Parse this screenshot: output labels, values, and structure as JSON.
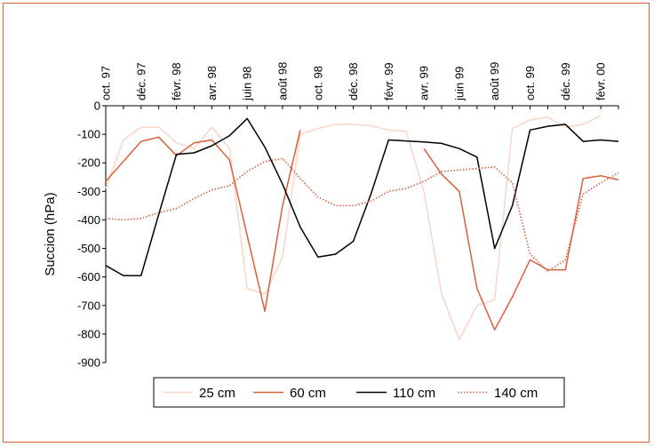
{
  "chart_data": {
    "type": "line",
    "ylabel": "Succion (hPa)",
    "ylim": [
      -900,
      0
    ],
    "ytick_labels": [
      "0",
      "-100",
      "-200",
      "-300",
      "-400",
      "-500",
      "-600",
      "-700",
      "-800",
      "-900"
    ],
    "x_tick_labels": [
      "oct. 97",
      "déc. 97",
      "févr. 98",
      "avr. 98",
      "juin 98",
      "août 98",
      "oct. 98",
      "déc. 98",
      "févr. 99",
      "avr. 99",
      "juin 99",
      "août 99",
      "oct. 99",
      "déc. 99",
      "févr. 00"
    ],
    "x_range_months": [
      0,
      29
    ],
    "grid": false,
    "legend_position": "bottom",
    "series": [
      {
        "name": "25 cm",
        "color": "#f9d5c5",
        "style": "solid",
        "points": [
          [
            0,
            -290
          ],
          [
            1,
            -120
          ],
          [
            2,
            -75
          ],
          [
            3,
            -75
          ],
          [
            4,
            -130
          ],
          [
            5,
            -150
          ],
          [
            6,
            -75
          ],
          [
            7,
            -150
          ],
          [
            8,
            -640
          ],
          [
            9,
            -660
          ],
          [
            10,
            -530
          ],
          [
            11,
            -100
          ],
          [
            12,
            -80
          ],
          [
            13,
            -65
          ],
          [
            14,
            -65
          ],
          [
            15,
            -70
          ],
          [
            16,
            -85
          ],
          [
            17,
            -90
          ],
          [
            18,
            -300
          ],
          [
            19,
            -660
          ],
          [
            20,
            -820
          ],
          [
            21,
            -700
          ],
          [
            22,
            -680
          ],
          [
            23,
            -80
          ],
          [
            24,
            -50
          ],
          [
            25,
            -40
          ],
          [
            26,
            -75
          ],
          [
            27,
            -65
          ],
          [
            28,
            -35
          ]
        ]
      },
      {
        "name": "60 cm",
        "color": "#d9603b",
        "style": "solid",
        "points": [
          [
            0,
            -265
          ],
          [
            2,
            -125
          ],
          [
            3,
            -110
          ],
          [
            4,
            -175
          ],
          [
            5,
            -130
          ],
          [
            6,
            -120
          ],
          [
            7,
            -190
          ],
          [
            9,
            -720
          ],
          [
            10,
            -350
          ],
          [
            11,
            -85
          ],
          [
            null,
            null
          ],
          [
            18,
            -150
          ],
          [
            19,
            -240
          ],
          [
            20,
            -300
          ],
          [
            21,
            -640
          ],
          [
            22,
            -785
          ],
          [
            23,
            -670
          ],
          [
            24,
            -540
          ],
          [
            25,
            -575
          ],
          [
            26,
            -575
          ],
          [
            27,
            -255
          ],
          [
            28,
            -245
          ],
          [
            29,
            -260
          ]
        ]
      },
      {
        "name": "110 cm",
        "color": "#000000",
        "style": "solid",
        "points": [
          [
            0,
            -560
          ],
          [
            1,
            -595
          ],
          [
            2,
            -595
          ],
          [
            3,
            -380
          ],
          [
            4,
            -170
          ],
          [
            5,
            -165
          ],
          [
            6,
            -140
          ],
          [
            7,
            -105
          ],
          [
            8,
            -45
          ],
          [
            9,
            -145
          ],
          [
            10,
            -275
          ],
          [
            11,
            -425
          ],
          [
            12,
            -530
          ],
          [
            13,
            -520
          ],
          [
            14,
            -475
          ],
          [
            15,
            -310
          ],
          [
            16,
            -120
          ],
          [
            18,
            -127
          ],
          [
            19,
            -132
          ],
          [
            20,
            -150
          ],
          [
            21,
            -180
          ],
          [
            22,
            -500
          ],
          [
            23,
            -350
          ],
          [
            24,
            -85
          ],
          [
            25,
            -72
          ],
          [
            26,
            -65
          ],
          [
            27,
            -125
          ],
          [
            28,
            -120
          ],
          [
            29,
            -125
          ]
        ]
      },
      {
        "name": "140 cm",
        "color": "#d9603b",
        "style": "dotted",
        "points": [
          [
            0,
            -395
          ],
          [
            1,
            -400
          ],
          [
            2,
            -395
          ],
          [
            3,
            -375
          ],
          [
            4,
            -360
          ],
          [
            5,
            -325
          ],
          [
            6,
            -295
          ],
          [
            7,
            -280
          ],
          [
            8,
            -230
          ],
          [
            9,
            -195
          ],
          [
            10,
            -185
          ],
          [
            11,
            -255
          ],
          [
            12,
            -320
          ],
          [
            13,
            -350
          ],
          [
            14,
            -350
          ],
          [
            15,
            -335
          ],
          [
            16,
            -300
          ],
          [
            17,
            -290
          ],
          [
            18,
            -265
          ],
          [
            19,
            -230
          ],
          [
            20,
            -225
          ],
          [
            21,
            -220
          ],
          [
            22,
            -215
          ],
          [
            23,
            -270
          ],
          [
            24,
            -520
          ],
          [
            25,
            -580
          ],
          [
            26,
            -540
          ],
          [
            27,
            -310
          ],
          [
            28,
            -270
          ],
          [
            29,
            -235
          ]
        ]
      }
    ]
  }
}
